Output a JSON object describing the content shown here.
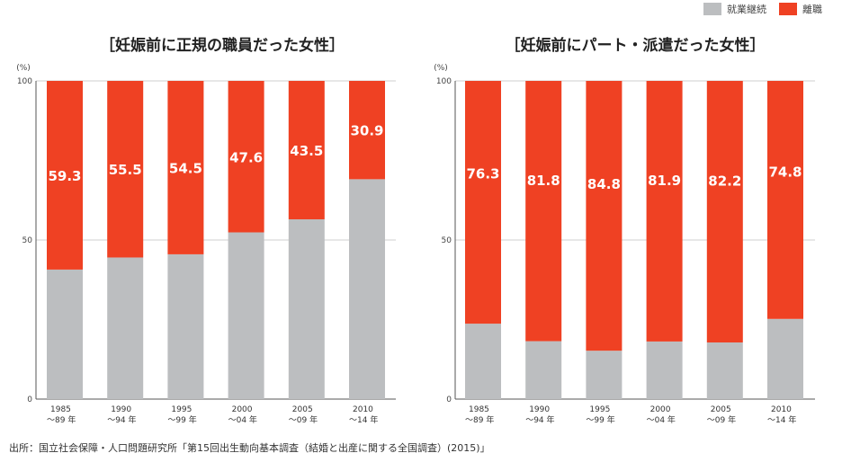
{
  "legend": {
    "items": [
      {
        "label": "就業継続",
        "color": "#bcbec0"
      },
      {
        "label": "離職",
        "color": "#ef4123"
      }
    ]
  },
  "source_note": "出所：国立社会保障・人口問題研究所「第15回出生動向基本調査（結婚と出産に関する全国調査）(2015)」",
  "chart_data": [
    {
      "type": "bar",
      "stacked": true,
      "title": "［妊娠前に正規の職員だった女性］",
      "yunit": "(%)",
      "ylim": [
        0,
        100
      ],
      "yticks": [
        "0",
        "50",
        "100"
      ],
      "categories": [
        {
          "line1": "1985",
          "line2": "〜89 年"
        },
        {
          "line1": "1990",
          "line2": "〜94 年"
        },
        {
          "line1": "1995",
          "line2": "〜99 年"
        },
        {
          "line1": "2000",
          "line2": "〜04 年"
        },
        {
          "line1": "2005",
          "line2": "〜09 年"
        },
        {
          "line1": "2010",
          "line2": "〜14 年"
        }
      ],
      "series": [
        {
          "name": "就業継続",
          "values": [
            40.7,
            44.5,
            45.5,
            52.4,
            56.5,
            69.1
          ],
          "color": "#bcbec0"
        },
        {
          "name": "離職",
          "values": [
            59.3,
            55.5,
            54.5,
            47.6,
            43.5,
            30.9
          ],
          "labels": [
            "59.3",
            "55.5",
            "54.5",
            "47.6",
            "43.5",
            "30.9"
          ],
          "color": "#ef4123"
        }
      ]
    },
    {
      "type": "bar",
      "stacked": true,
      "title": "［妊娠前にパート・派遣だった女性］",
      "yunit": "(%)",
      "ylim": [
        0,
        100
      ],
      "yticks": [
        "0",
        "50",
        "100"
      ],
      "categories": [
        {
          "line1": "1985",
          "line2": "〜89 年"
        },
        {
          "line1": "1990",
          "line2": "〜94 年"
        },
        {
          "line1": "1995",
          "line2": "〜99 年"
        },
        {
          "line1": "2000",
          "line2": "〜04 年"
        },
        {
          "line1": "2005",
          "line2": "〜09 年"
        },
        {
          "line1": "2010",
          "line2": "〜14 年"
        }
      ],
      "series": [
        {
          "name": "就業継続",
          "values": [
            23.7,
            18.2,
            15.2,
            18.1,
            17.8,
            25.2
          ],
          "color": "#bcbec0"
        },
        {
          "name": "離職",
          "values": [
            76.3,
            81.8,
            84.8,
            81.9,
            82.2,
            74.8
          ],
          "labels": [
            "76.3",
            "81.8",
            "84.8",
            "81.9",
            "82.2",
            "74.8"
          ],
          "color": "#ef4123"
        }
      ]
    }
  ]
}
